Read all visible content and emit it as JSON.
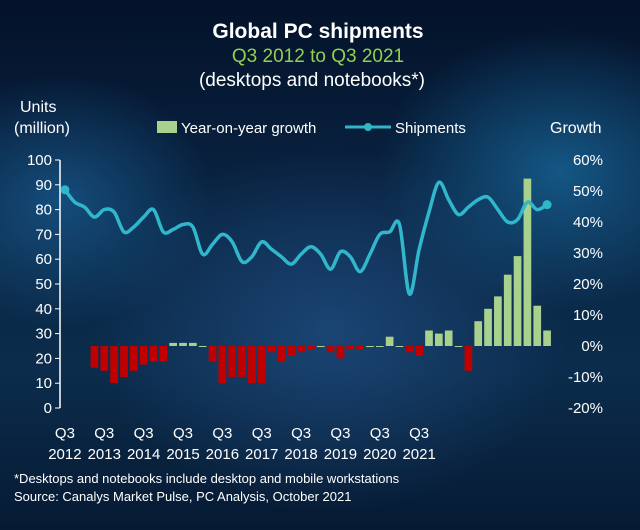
{
  "chart_data": {
    "type": "bar+line",
    "title": "Global PC shipments",
    "subtitle": "Q3 2012 to Q3 2021",
    "subtitle2": "(desktops and notebooks*)",
    "ylabel_left_line1": "Units",
    "ylabel_left_line2": "(million)",
    "ylabel_right": "Growth",
    "left_axis": {
      "min": 0,
      "max": 100,
      "ticks": [
        0,
        10,
        20,
        30,
        40,
        50,
        60,
        70,
        80,
        90,
        100
      ]
    },
    "right_axis": {
      "min": -20,
      "max": 60,
      "ticks": [
        "-20%",
        "-10%",
        "0%",
        "10%",
        "20%",
        "30%",
        "40%",
        "50%",
        "60%"
      ]
    },
    "legend": [
      {
        "name": "Year-on-year growth",
        "type": "bar",
        "color": "#a9d18e"
      },
      {
        "name": "Shipments",
        "type": "line",
        "color": "#31b7cc"
      }
    ],
    "x_labels": [
      {
        "q": "Q3",
        "year": "2012"
      },
      {
        "q": "Q3",
        "year": "2013"
      },
      {
        "q": "Q3",
        "year": "2014"
      },
      {
        "q": "Q3",
        "year": "2015"
      },
      {
        "q": "Q3",
        "year": "2016"
      },
      {
        "q": "Q3",
        "year": "2017"
      },
      {
        "q": "Q3",
        "year": "2018"
      },
      {
        "q": "Q3",
        "year": "2019"
      },
      {
        "q": "Q3",
        "year": "2020"
      },
      {
        "q": "Q3",
        "year": "2021"
      }
    ],
    "quarters_per_label": 4,
    "shipments": [
      88,
      83,
      81,
      77,
      80,
      79,
      71,
      73,
      77,
      80,
      71,
      72,
      74,
      73,
      62,
      66,
      70,
      67,
      59,
      61,
      67,
      64,
      61,
      58,
      62,
      65,
      62,
      56,
      63,
      61,
      55,
      62,
      70,
      71,
      74,
      46,
      64,
      79,
      91,
      84,
      78,
      81,
      84,
      85,
      80,
      75,
      76,
      83,
      80,
      82
    ],
    "growth": [
      -7,
      -8,
      -12,
      -10,
      -8,
      -6,
      -5,
      -5,
      1,
      1,
      1,
      0,
      -5,
      -12,
      -10,
      -10,
      -12,
      -12,
      -2,
      -5,
      -3,
      -2,
      -1,
      0,
      -2,
      -4,
      -1,
      -1,
      0,
      0,
      3,
      0,
      -2,
      -3,
      5,
      4,
      5,
      0,
      -8,
      8,
      12,
      16,
      23,
      29,
      54,
      13,
      5
    ],
    "growth_start_index": 3,
    "growth_color_positive": "#a9d18e",
    "growth_color_negative": "#c00000",
    "line_color": "#31b7cc",
    "footnote": "*Desktops and notebooks include desktop and mobile workstations",
    "source": "Source:  Canalys Market Pulse, PC Analysis, October 2021"
  }
}
